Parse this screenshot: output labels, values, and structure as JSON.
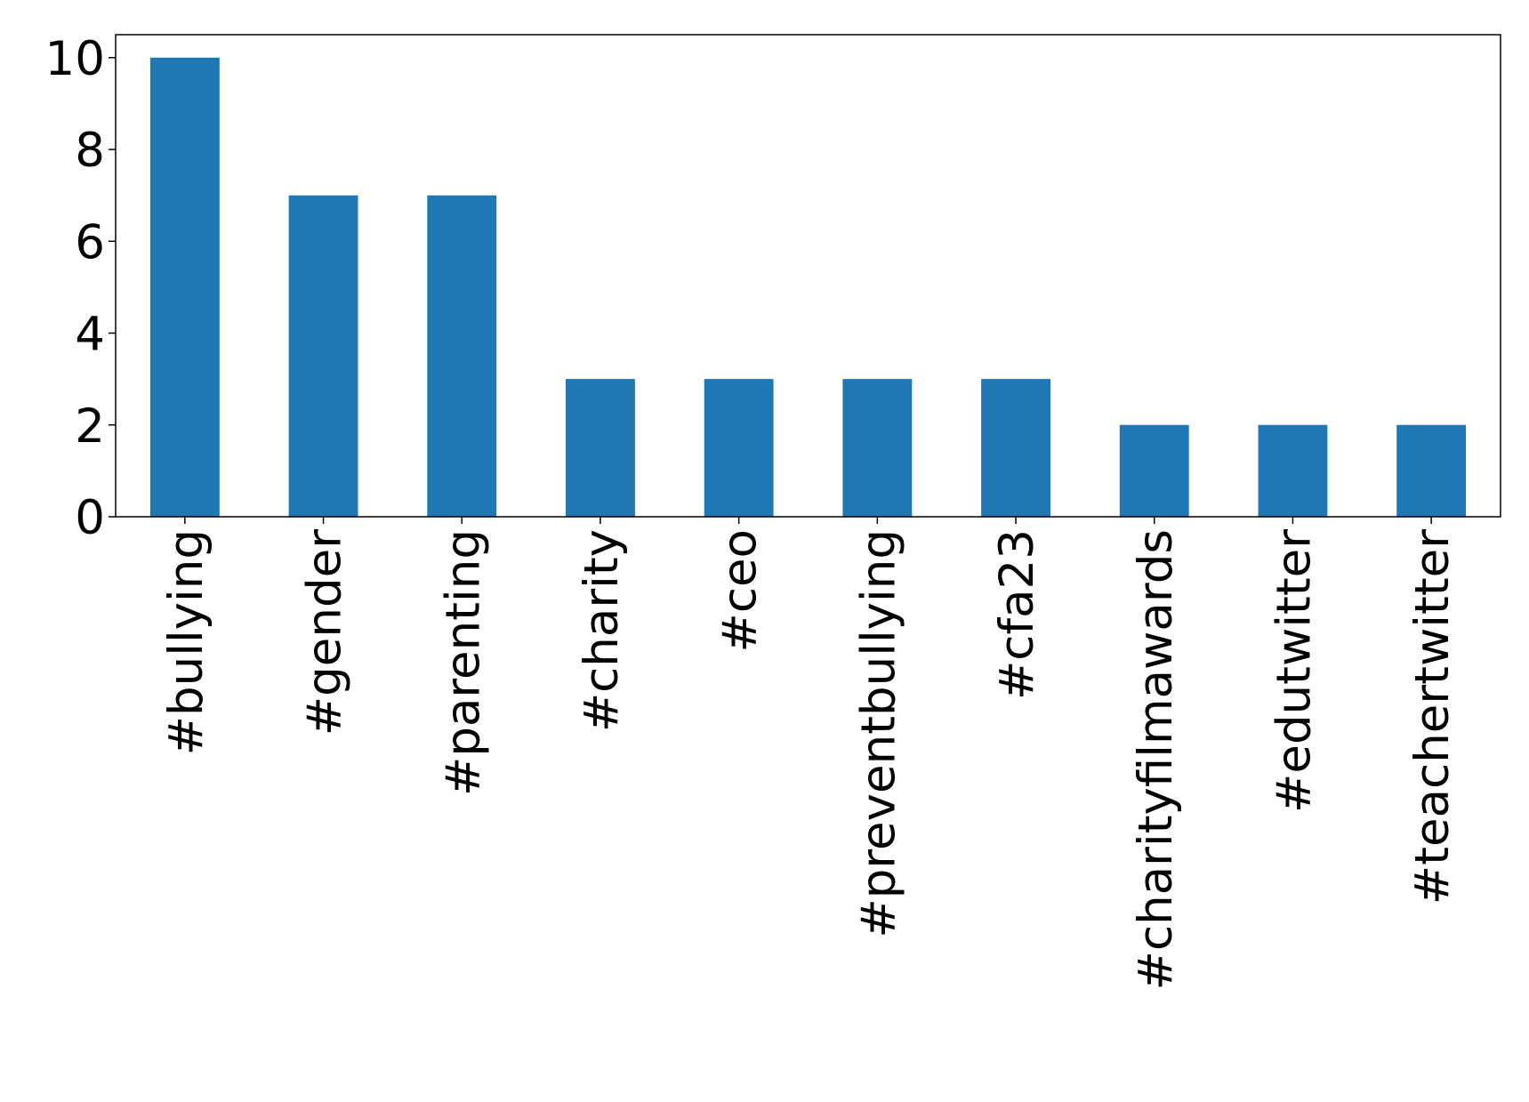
{
  "chart_data": {
    "type": "bar",
    "categories": [
      "#bullying",
      "#gender",
      "#parenting",
      "#charity",
      "#ceo",
      "#preventbullying",
      "#cfa23",
      "#charityfilmawards",
      "#edutwitter",
      "#teachertwitter"
    ],
    "values": [
      10,
      7,
      7,
      3,
      3,
      3,
      3,
      2,
      2,
      2
    ],
    "color": "#1f77b4",
    "ylim": [
      0,
      10.5
    ],
    "yticks": [
      0,
      2,
      4,
      6,
      8,
      10
    ],
    "grid": false
  }
}
